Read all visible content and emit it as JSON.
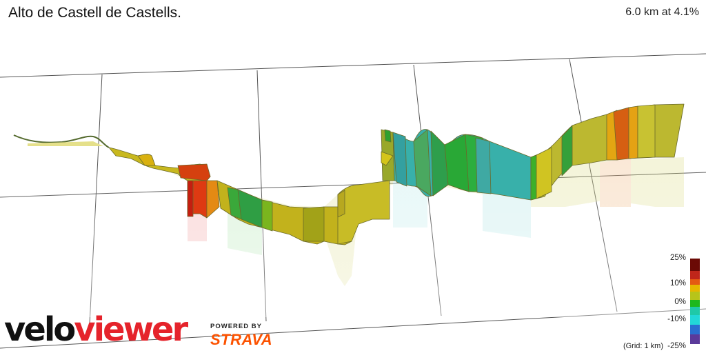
{
  "header": {
    "title": "Alto de Castell de Castells.",
    "summary": "6.0 km at 4.1%"
  },
  "legend": {
    "stops": [
      {
        "label": "25%",
        "value": 25,
        "color": "#6b0a05"
      },
      {
        "label": "10%",
        "value": 10,
        "color": "#e6b800"
      },
      {
        "label": "0%",
        "value": 0,
        "color": "#1db81d"
      },
      {
        "label": "-10%",
        "value": -10,
        "color": "#22d8d8"
      },
      {
        "label": "-25%",
        "value": -25,
        "color": "#5b3a9a"
      }
    ],
    "grid_note": "(Grid: 1 km)"
  },
  "branding": {
    "logo_velo": "velo",
    "logo_viewer": "viewer",
    "powered_by": "POWERED BY",
    "strava": "STRAVA"
  },
  "colors": {
    "brand_red": "#e5232b",
    "strava_orange": "#fc5200",
    "grid_line": "#555555"
  }
}
